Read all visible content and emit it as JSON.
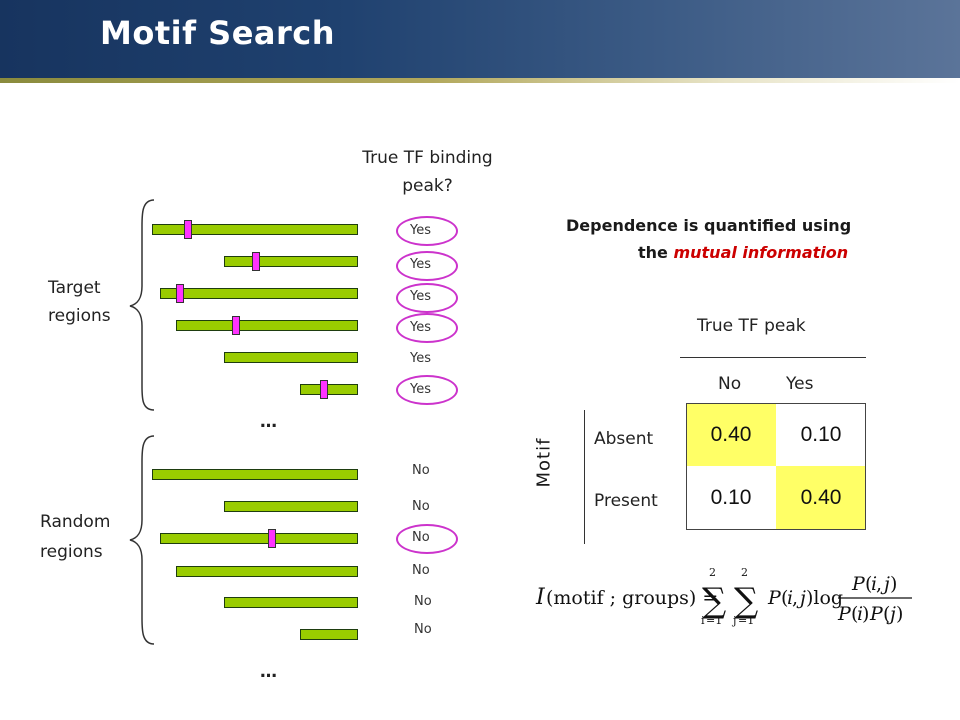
{
  "header": {
    "title": "Motif Search"
  },
  "left": {
    "target_label": "Target\nregions",
    "random_label": "Random\nregions",
    "column_header": "True TF binding\npeak?",
    "ellipsis": "…",
    "target_answers": [
      "Yes",
      "Yes",
      "Yes",
      "Yes",
      "Yes",
      "Yes"
    ],
    "random_answers": [
      "No",
      "No",
      "No",
      "No",
      "No",
      "No"
    ]
  },
  "right": {
    "statement_line1": "Dependence is quantified using",
    "statement_line2_prefix": "the",
    "statement_line2_emph": "mutual information",
    "table_title": "True TF peak",
    "col_headers": [
      "No",
      "Yes"
    ],
    "row_group_label": "Motif",
    "row_headers": [
      "Absent",
      "Present"
    ],
    "values": [
      [
        "0.40",
        "0.10"
      ],
      [
        "0.10",
        "0.40"
      ]
    ],
    "formula_label": "I(motif ; groups) = Σ_{i=1}^{2} Σ_{j=1}^{2} P(i, j) log P(i, j) / (P(i)P(j))"
  },
  "colors": {
    "bar": "#99cc00",
    "marker": "#ff33ff",
    "highlight": "#ffff66",
    "emphasis": "#cc0000"
  }
}
